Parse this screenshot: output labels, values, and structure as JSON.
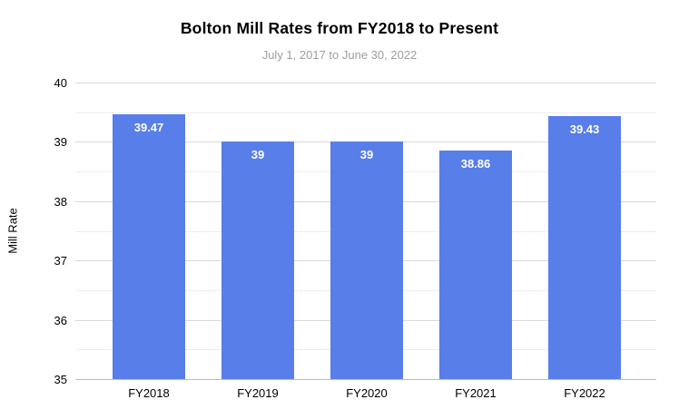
{
  "chart_data": {
    "type": "bar",
    "title": "Bolton Mill Rates from FY2018 to Present",
    "subtitle": "July 1, 2017 to June 30, 2022",
    "xlabel": "",
    "ylabel": "Mill Rate",
    "categories": [
      "FY2018",
      "FY2019",
      "FY2020",
      "FY2021",
      "FY2022"
    ],
    "values": [
      39.47,
      39,
      39,
      38.86,
      39.43
    ],
    "value_labels": [
      "39.47",
      "39",
      "39",
      "38.86",
      "39.43"
    ],
    "ylim": [
      35,
      40
    ],
    "y_ticks": [
      35,
      36,
      37,
      38,
      39,
      40
    ],
    "minor_grid_step": 0.5,
    "grid": "on",
    "legend": "none",
    "colors": {
      "bar": "#587ee9",
      "value_label": "#ffffff",
      "major_grid": "#d9d9d9",
      "minor_grid": "#ededed",
      "baseline": "#bdbdbd",
      "title": "#000000",
      "subtitle": "#9e9e9e",
      "axis_text": "#000000"
    }
  }
}
